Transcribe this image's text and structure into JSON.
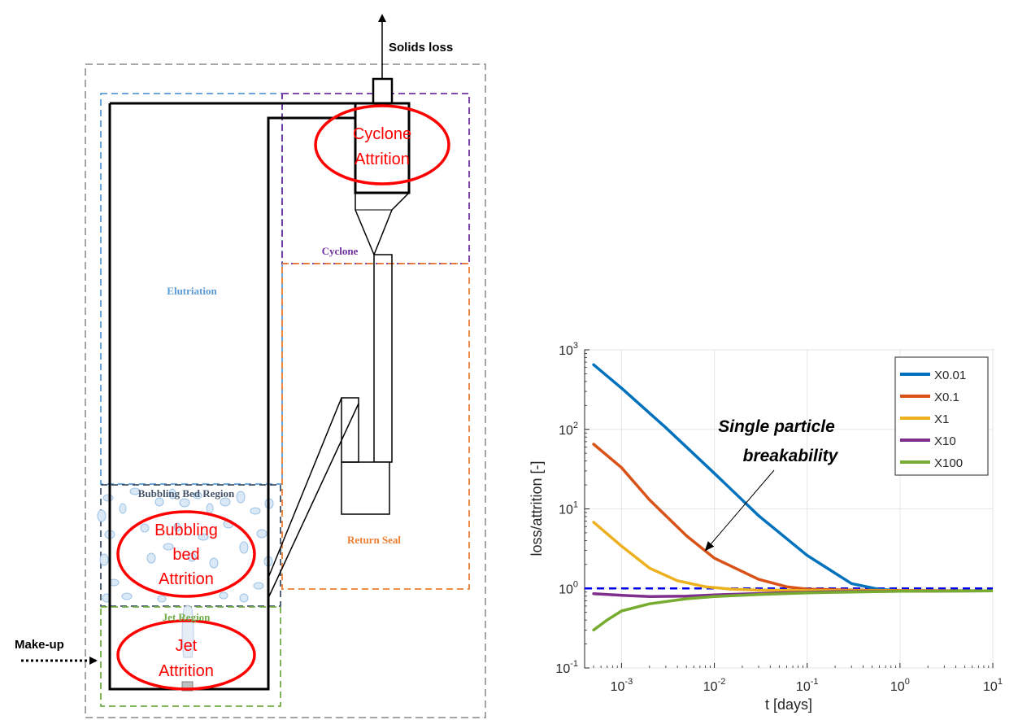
{
  "diagram": {
    "annotations": {
      "solids_loss": "Solids loss",
      "make_up": "Make-up"
    },
    "regions": {
      "elutriation": "Elutriation",
      "cyclone": "Cyclone",
      "return_seal": "Return Seal",
      "bubbling_bed": "Bubbling Bed Region",
      "jet": "Jet Region"
    },
    "attrition_labels": {
      "cyclone": [
        "Cyclone",
        "Attrition"
      ],
      "bubbling": [
        "Bubbling",
        "bed",
        "Attrition"
      ],
      "jet": [
        "Jet",
        "Attrition"
      ]
    },
    "colors": {
      "elutriation": "#5b9bd5",
      "cyclone": "#7030a0",
      "return_seal": "#ed7d31",
      "bubbling_bed": "#44546a",
      "jet": "#70ad47",
      "outer": "#a6a6a6",
      "attrition": "#ff0000"
    }
  },
  "chart_data": {
    "type": "line",
    "xscale": "log",
    "yscale": "log",
    "xlim": [
      0.0004,
      10
    ],
    "ylim": [
      0.1,
      1000
    ],
    "xlabel": "t [days]",
    "ylabel": "loss/attrition [-]",
    "xticks": [
      {
        "value": 0.001,
        "base": "10",
        "exp": "-3"
      },
      {
        "value": 0.01,
        "base": "10",
        "exp": "-2"
      },
      {
        "value": 0.1,
        "base": "10",
        "exp": "-1"
      },
      {
        "value": 1,
        "base": "10",
        "exp": "0"
      },
      {
        "value": 10,
        "base": "10",
        "exp": "1"
      }
    ],
    "yticks": [
      {
        "value": 0.1,
        "base": "10",
        "exp": "-1"
      },
      {
        "value": 1,
        "base": "10",
        "exp": "0"
      },
      {
        "value": 10,
        "base": "10",
        "exp": "1"
      },
      {
        "value": 100,
        "base": "10",
        "exp": "2"
      },
      {
        "value": 1000,
        "base": "10",
        "exp": "3"
      }
    ],
    "legend_position": "top-right",
    "annotation": [
      "Single particle",
      "breakability"
    ],
    "reference_line": {
      "y": 1,
      "style": "dashed",
      "color": "#0000ee"
    },
    "series": [
      {
        "name": "X0.01",
        "color": "#0072bd",
        "x": [
          0.0005,
          0.001,
          0.003,
          0.01,
          0.03,
          0.1,
          0.3,
          0.6,
          1,
          3,
          10
        ],
        "y": [
          650,
          330,
          105,
          28,
          8.2,
          2.6,
          1.15,
          0.97,
          0.94,
          0.93,
          0.93
        ]
      },
      {
        "name": "X0.1",
        "color": "#d95319",
        "x": [
          0.0005,
          0.001,
          0.002,
          0.005,
          0.01,
          0.03,
          0.06,
          0.1,
          0.3,
          1,
          10
        ],
        "y": [
          65,
          33,
          13,
          4.6,
          2.4,
          1.3,
          1.05,
          0.98,
          0.95,
          0.94,
          0.93
        ]
      },
      {
        "name": "X1",
        "color": "#edb120",
        "x": [
          0.0005,
          0.001,
          0.002,
          0.004,
          0.008,
          0.015,
          0.03,
          0.1,
          1,
          10
        ],
        "y": [
          6.8,
          3.4,
          1.8,
          1.25,
          1.05,
          0.98,
          0.95,
          0.94,
          0.93,
          0.93
        ]
      },
      {
        "name": "X10",
        "color": "#7e2f8e",
        "x": [
          0.0005,
          0.001,
          0.002,
          0.005,
          0.01,
          0.05,
          0.2,
          1,
          10
        ],
        "y": [
          0.86,
          0.82,
          0.79,
          0.8,
          0.83,
          0.88,
          0.91,
          0.92,
          0.93
        ]
      },
      {
        "name": "X100",
        "color": "#77ac30",
        "x": [
          0.0005,
          0.0007,
          0.001,
          0.002,
          0.005,
          0.01,
          0.03,
          0.1,
          0.3,
          1,
          10
        ],
        "y": [
          0.3,
          0.4,
          0.52,
          0.64,
          0.74,
          0.79,
          0.84,
          0.88,
          0.9,
          0.92,
          0.93
        ]
      }
    ]
  }
}
